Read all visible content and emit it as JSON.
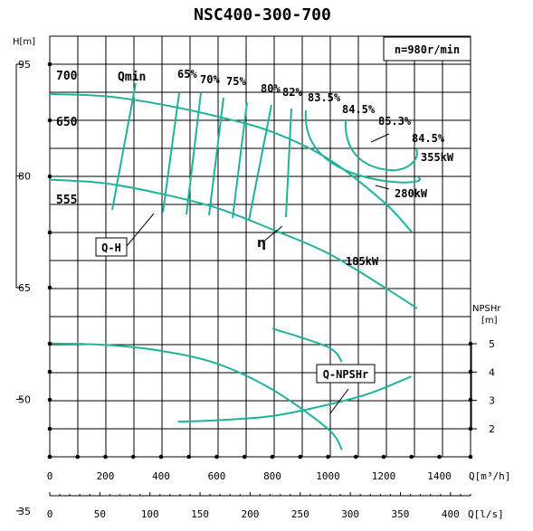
{
  "chart_data": {
    "type": "line",
    "title": "NSC400-300-700",
    "speed_label": "n=980r/min",
    "left_axis": {
      "unit_label": "H[m]",
      "ticks": [
        "95",
        "80",
        "65",
        "50",
        "35"
      ]
    },
    "right_axis": {
      "unit_label_line1": "NPSHr",
      "unit_label_line2": "[m]",
      "ticks": [
        "5",
        "4",
        "3",
        "2"
      ]
    },
    "x_axis_q": {
      "unit_label": "Q[m³/h]",
      "ticks": [
        "0",
        "200",
        "400",
        "600",
        "800",
        "1000",
        "1200",
        "1400"
      ]
    },
    "x_axis_ls": {
      "unit_label": "Q[l/s]",
      "ticks": [
        "0",
        "50",
        "100",
        "150",
        "200",
        "250",
        "300",
        "350",
        "400"
      ]
    },
    "impeller_labels": [
      "700",
      "650",
      "555"
    ],
    "qmin_label": "Qmin",
    "efficiency_labels": [
      "65%",
      "70%",
      "75%",
      "80%",
      "82%",
      "83.5%",
      "84.5%",
      "85.3%",
      "84.5%"
    ],
    "power_labels": [
      "355kW",
      "280kW",
      "185kW"
    ],
    "curve_labels": {
      "qh": "Q-H",
      "eta": "η",
      "npsh": "Q-NPSHr"
    },
    "series": [
      {
        "curve": "Q-H 700",
        "x": [
          0,
          200,
          400,
          600,
          800,
          1000,
          1200,
          1300
        ],
        "y": [
          91,
          90.7,
          89.6,
          88.0,
          85.9,
          82.3,
          76.5,
          72.5
        ]
      },
      {
        "curve": "Q-H 650",
        "x": [
          0,
          200,
          400,
          600,
          800,
          1000,
          1200,
          1320
        ],
        "y": [
          79.5,
          79,
          77.6,
          75.7,
          72.8,
          69.6,
          65.1,
          62.2
        ]
      },
      {
        "curve": "Q-H 555",
        "x": [
          0,
          200,
          400,
          600,
          800,
          1000,
          1050
        ],
        "y": [
          57.5,
          57.3,
          56.5,
          54.8,
          51.3,
          46,
          43.2
        ]
      },
      {
        "curve": "Q-NPSHr",
        "x": [
          460,
          600,
          800,
          1000,
          1150,
          1300
        ],
        "y": [
          2.25,
          2.3,
          2.45,
          2.85,
          3.25,
          3.85
        ]
      }
    ],
    "grid": true
  }
}
